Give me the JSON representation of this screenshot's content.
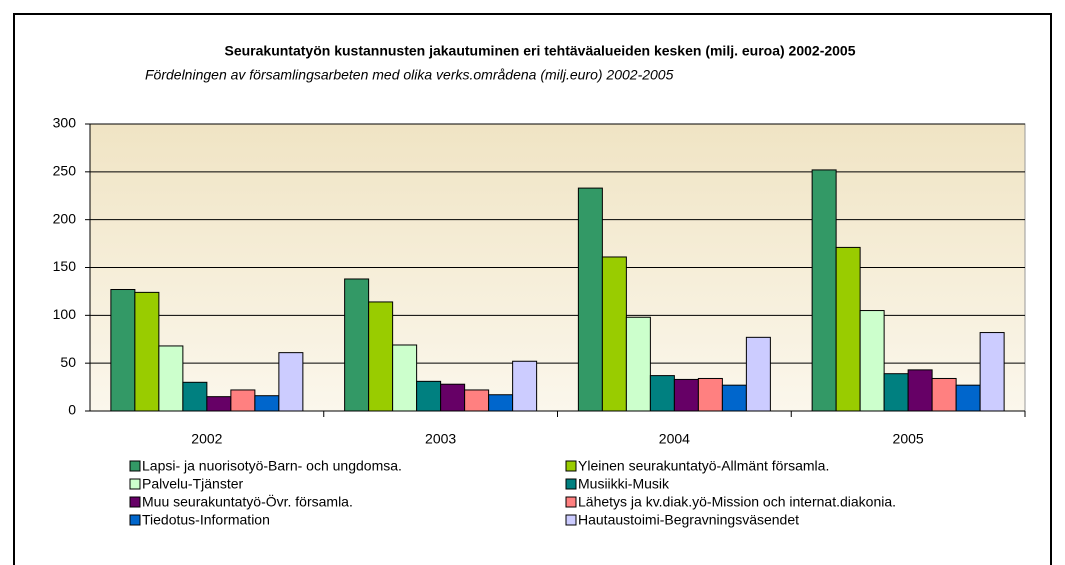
{
  "chart_data": {
    "type": "bar",
    "title": "Seurakuntatyön kustannusten jakautuminen eri tehtäväalueiden kesken (milj. euroa) 2002-2005",
    "subtitle": "Fördelningen av församlingsarbeten med olika verks.områdena (milj.euro) 2002-2005",
    "categories": [
      "2002",
      "2003",
      "2004",
      "2005"
    ],
    "series": [
      {
        "name": "Lapsi- ja nuorisotyö-Barn- och ungdomsa.",
        "color": "#339966",
        "values": [
          127,
          138,
          233,
          252
        ]
      },
      {
        "name": "Yleinen seurakuntatyö-Allmänt församla.",
        "color": "#99cc00",
        "values": [
          124,
          114,
          161,
          171
        ]
      },
      {
        "name": "Palvelu-Tjänster",
        "color": "#ccffcc",
        "values": [
          68,
          69,
          98,
          105
        ]
      },
      {
        "name": "Musiikki-Musik",
        "color": "#008080",
        "values": [
          30,
          31,
          37,
          39
        ]
      },
      {
        "name": "Muu seurakuntatyö-Övr. församla.",
        "color": "#660066",
        "values": [
          15,
          28,
          33,
          43
        ]
      },
      {
        "name": "Lähetys ja kv.diak.yö-Mission och internat.diakonia.",
        "color": "#ff8080",
        "values": [
          22,
          22,
          34,
          34
        ]
      },
      {
        "name": "Tiedotus-Information",
        "color": "#0066cc",
        "values": [
          16,
          17,
          27,
          27
        ]
      },
      {
        "name": "Hautaustoimi-Begravningsväsendet",
        "color": "#ccccff",
        "values": [
          61,
          52,
          77,
          82
        ]
      }
    ],
    "ylim": [
      0,
      300
    ],
    "yticks": [
      0,
      50,
      100,
      150,
      200,
      250,
      300
    ],
    "grid": true,
    "legend": "bottom"
  }
}
